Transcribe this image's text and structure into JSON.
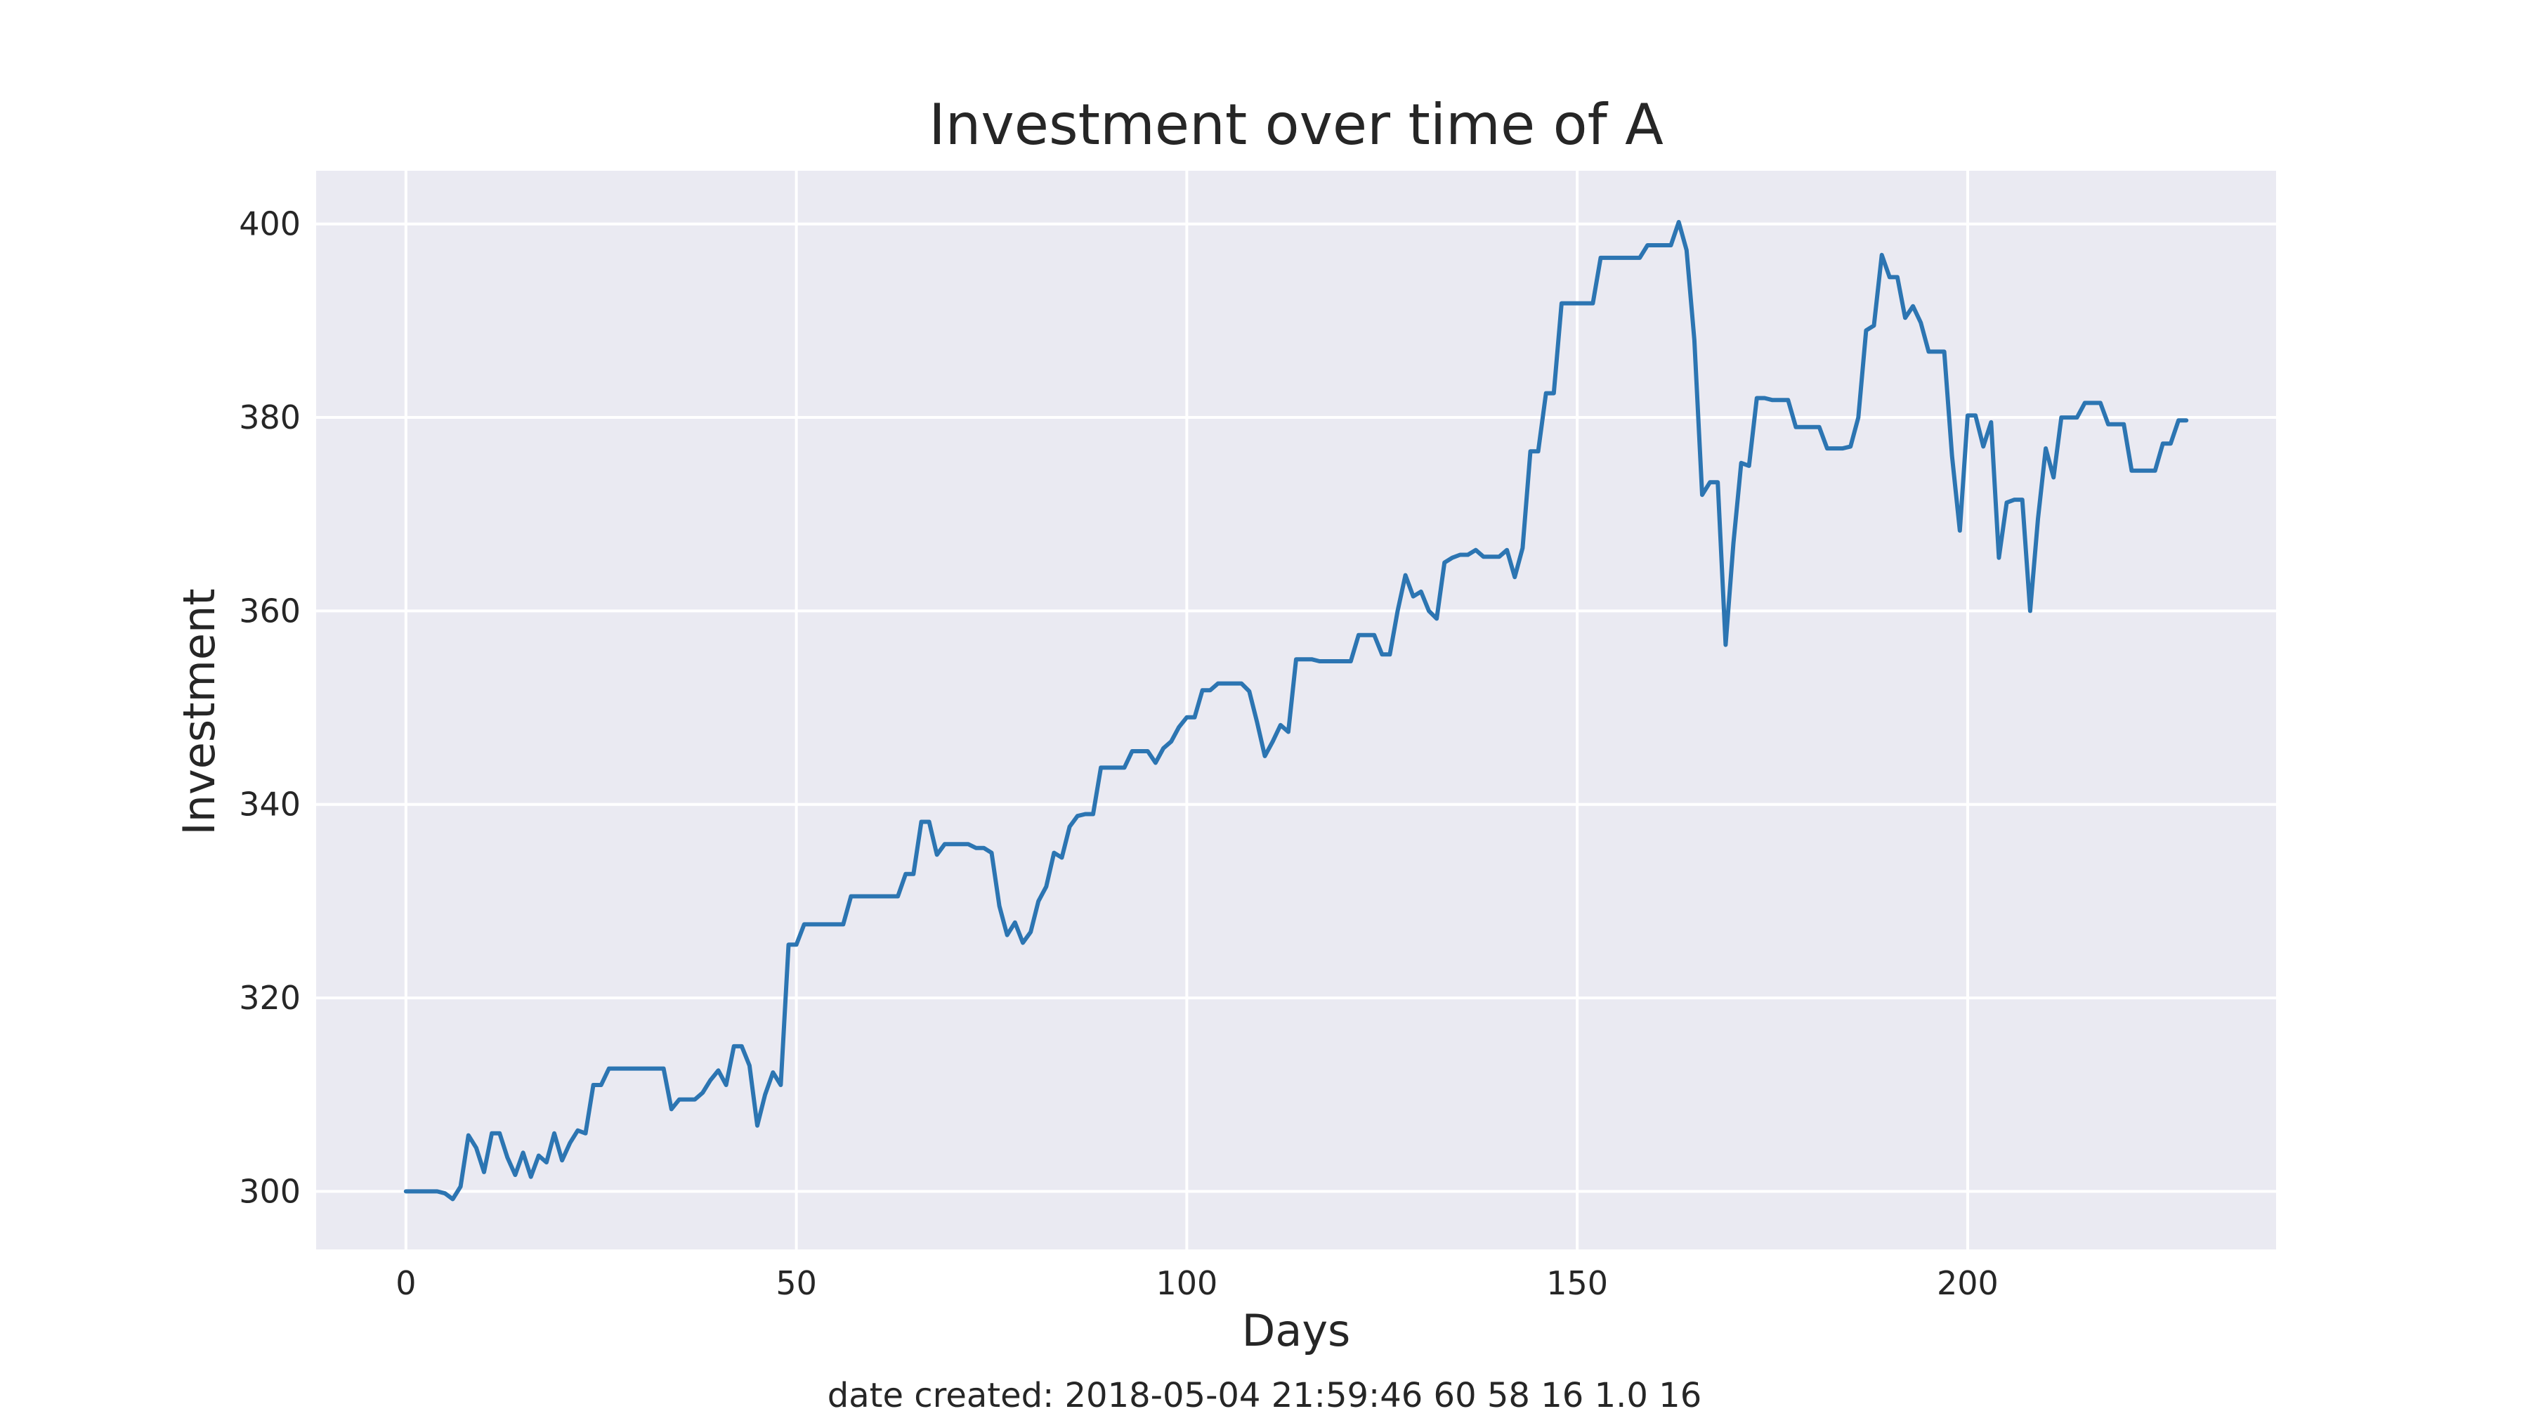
{
  "chart_data": {
    "type": "line",
    "title": "Investment over time of A",
    "xlabel": "Days",
    "ylabel": "Investment",
    "xlim": [
      -11.5,
      239.5
    ],
    "ylim": [
      294,
      405.5
    ],
    "xticks": [
      0,
      50,
      100,
      150,
      200
    ],
    "yticks": [
      300,
      320,
      340,
      360,
      380,
      400
    ],
    "grid": true,
    "legend": "none",
    "colors": {
      "line": "#2c75b2",
      "plot_bg": "#eaeaf2",
      "grid": "#ffffff",
      "text": "#262626"
    },
    "series": [
      {
        "x": [
          0,
          1,
          2,
          3,
          4,
          5,
          6,
          7,
          8,
          9,
          10,
          11,
          12,
          13,
          14,
          15,
          16,
          17,
          18,
          19,
          20,
          21,
          22,
          23,
          24,
          25,
          26,
          27,
          28,
          29,
          30,
          31,
          32,
          33,
          34,
          35,
          36,
          37,
          38,
          39,
          40,
          41,
          42,
          43,
          44,
          45,
          46,
          47,
          48,
          49,
          50,
          51,
          52,
          53,
          54,
          55,
          56,
          57,
          58,
          59,
          60,
          61,
          62,
          63,
          64,
          65,
          66,
          67,
          68,
          69,
          70,
          71,
          72,
          73,
          74,
          75,
          76,
          77,
          78,
          79,
          80,
          81,
          82,
          83,
          84,
          85,
          86,
          87,
          88,
          89,
          90,
          91,
          92,
          93,
          94,
          95,
          96,
          97,
          98,
          99,
          100,
          101,
          102,
          103,
          104,
          105,
          106,
          107,
          108,
          109,
          110,
          111,
          112,
          113,
          114,
          115,
          116,
          117,
          118,
          119,
          120,
          121,
          122,
          123,
          124,
          125,
          126,
          127,
          128,
          129,
          130,
          131,
          132,
          133,
          134,
          135,
          136,
          137,
          138,
          139,
          140,
          141,
          142,
          143,
          144,
          145,
          146,
          147,
          148,
          149,
          150,
          151,
          152,
          153,
          154,
          155,
          156,
          157,
          158,
          159,
          160,
          161,
          162,
          163,
          164,
          165,
          166,
          167,
          168,
          169,
          170,
          171,
          172,
          173,
          174,
          175,
          176,
          177,
          178,
          179,
          180,
          181,
          182,
          183,
          184,
          185,
          186,
          187,
          188,
          189,
          190,
          191,
          192,
          193,
          194,
          195,
          196,
          197,
          198,
          199,
          200,
          201,
          202,
          203,
          204,
          205,
          206,
          207,
          208,
          209,
          210,
          211,
          212,
          213,
          214,
          215,
          216,
          217,
          218,
          219,
          220,
          221,
          222,
          223,
          224,
          225,
          226,
          227,
          228
        ],
        "values": [
          300,
          300,
          300,
          300,
          300,
          299.8,
          299.2,
          300.5,
          305.8,
          304.5,
          302.0,
          306.0,
          306.0,
          303.5,
          301.7,
          304.0,
          301.5,
          303.7,
          303.0,
          306.0,
          303.2,
          305.0,
          306.3,
          306.0,
          311.0,
          311.0,
          312.7,
          312.7,
          312.7,
          312.7,
          312.7,
          312.7,
          312.7,
          312.7,
          308.5,
          309.5,
          309.5,
          309.5,
          310.2,
          311.5,
          312.5,
          311.0,
          315.0,
          315.0,
          313.0,
          306.8,
          310.0,
          312.3,
          311.0,
          325.5,
          325.5,
          327.6,
          327.6,
          327.6,
          327.6,
          327.6,
          327.6,
          330.5,
          330.5,
          330.5,
          330.5,
          330.5,
          330.5,
          330.5,
          332.8,
          332.8,
          338.2,
          338.2,
          334.8,
          335.9,
          335.9,
          335.9,
          335.9,
          335.5,
          335.5,
          335.0,
          329.5,
          326.5,
          327.8,
          325.7,
          326.8,
          330.0,
          331.5,
          335.0,
          334.5,
          337.7,
          338.8,
          339.0,
          339.0,
          343.8,
          343.8,
          343.8,
          343.8,
          345.5,
          345.5,
          345.5,
          344.3,
          345.8,
          346.5,
          348.0,
          349.0,
          349.0,
          351.8,
          351.8,
          352.5,
          352.5,
          352.5,
          352.5,
          351.7,
          348.5,
          345.0,
          346.5,
          348.2,
          347.5,
          355.0,
          355.0,
          355.0,
          354.8,
          354.8,
          354.8,
          354.8,
          354.8,
          357.5,
          357.5,
          357.5,
          355.5,
          355.5,
          360.0,
          363.7,
          361.5,
          362.0,
          360.0,
          359.2,
          365.0,
          365.5,
          365.8,
          365.8,
          366.3,
          365.6,
          365.6,
          365.6,
          366.3,
          363.5,
          366.5,
          376.5,
          376.5,
          382.5,
          382.5,
          391.8,
          391.8,
          391.8,
          391.8,
          391.8,
          396.5,
          396.5,
          396.5,
          396.5,
          396.5,
          396.5,
          397.8,
          397.8,
          397.8,
          397.8,
          400.2,
          397.3,
          388.0,
          372.0,
          373.3,
          373.3,
          356.5,
          367.0,
          375.3,
          375.0,
          382.0,
          382.0,
          381.8,
          381.8,
          381.8,
          379.0,
          379.0,
          379.0,
          379.0,
          376.8,
          376.8,
          376.8,
          377.0,
          380.0,
          389.0,
          389.5,
          396.8,
          394.5,
          394.5,
          390.3,
          391.5,
          389.8,
          386.8,
          386.8,
          386.8,
          376.0,
          368.3,
          380.2,
          380.2,
          377.0,
          379.5,
          365.5,
          371.2,
          371.5,
          371.5,
          360.0,
          369.5,
          376.8,
          373.8,
          380.0,
          380.0,
          380.0,
          381.5,
          381.5,
          381.5,
          379.3,
          379.3,
          379.3,
          374.5,
          374.5,
          374.5,
          374.5,
          377.3,
          377.3,
          379.7,
          379.7
        ]
      }
    ]
  },
  "footer": {
    "text": "date created: 2018-05-04 21:59:46 60 58 16 1.0 16"
  }
}
